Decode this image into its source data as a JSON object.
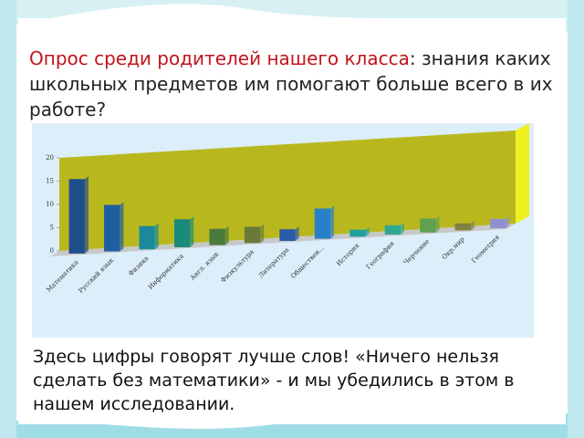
{
  "slide": {
    "title_lead": "Опрос среди родителей нашего класса",
    "title_rest": ": знания каких школьных предметов им помогают больше всего в их работе?",
    "caption": "Здесь цифры говорят лучше слов! «Ничего нельзя сделать без математики» - и мы убедились в этом в нашем исследовании."
  },
  "chart_data": {
    "type": "bar",
    "categories": [
      "Математика",
      "Русский язык",
      "Физика",
      "Информатика",
      "Англ. язык",
      "Физкультура",
      "Литература",
      "Обществен...",
      "История",
      "География",
      "Черчение",
      "Окр.мир",
      "Геометрия"
    ],
    "values": [
      16,
      10,
      5,
      6,
      3.5,
      3.5,
      2.5,
      6.5,
      1.5,
      2,
      3,
      1.5,
      2
    ],
    "colors": [
      "#1f4e8c",
      "#1f5fa0",
      "#1a8a9a",
      "#1a8a7a",
      "#4a7a3a",
      "#6a7a3a",
      "#2a5aa8",
      "#2a80c8",
      "#20a0a0",
      "#30a890",
      "#60a050",
      "#808040",
      "#9090d0"
    ],
    "ylim": [
      0,
      20
    ],
    "yticks": [
      0,
      5,
      10,
      15,
      20
    ]
  }
}
